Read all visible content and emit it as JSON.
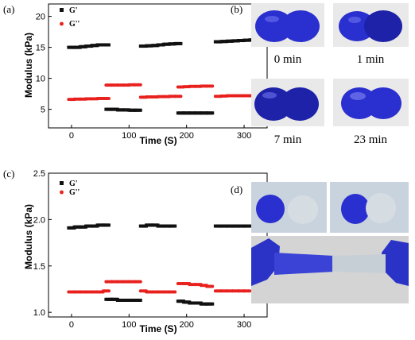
{
  "panel_labels": {
    "a": "(a)",
    "b": "(b)",
    "c": "(c)",
    "d": "(d)"
  },
  "photo_labels": {
    "b": [
      "0 min",
      "1 min",
      "7 min",
      "23 min"
    ]
  },
  "colors": {
    "g_prime": "#111111",
    "g_double_prime": "#e8211e"
  },
  "chart_data": [
    {
      "type": "scatter",
      "xlabel": "Time (S)",
      "ylabel": "Modulus (kPa)",
      "xlim": [
        -40,
        340
      ],
      "ylim": [
        2,
        22
      ],
      "xticks": [
        0,
        100,
        200,
        300
      ],
      "yticks": [
        5,
        10,
        15,
        20
      ],
      "legend": "top-left",
      "series": [
        {
          "name": "G'",
          "points": [
            [
              0,
              15.0
            ],
            [
              10,
              15.0
            ],
            [
              20,
              15.1
            ],
            [
              30,
              15.2
            ],
            [
              40,
              15.3
            ],
            [
              50,
              15.4
            ],
            [
              60,
              15.4
            ],
            [
              65,
              5.0
            ],
            [
              75,
              5.0
            ],
            [
              85,
              4.9
            ],
            [
              95,
              4.9
            ],
            [
              105,
              4.85
            ],
            [
              115,
              4.85
            ],
            [
              125,
              15.2
            ],
            [
              135,
              15.25
            ],
            [
              145,
              15.3
            ],
            [
              155,
              15.4
            ],
            [
              165,
              15.5
            ],
            [
              175,
              15.55
            ],
            [
              185,
              15.6
            ],
            [
              190,
              4.4
            ],
            [
              200,
              4.4
            ],
            [
              210,
              4.4
            ],
            [
              220,
              4.4
            ],
            [
              230,
              4.4
            ],
            [
              240,
              4.4
            ],
            [
              255,
              15.9
            ],
            [
              265,
              15.95
            ],
            [
              275,
              16.0
            ],
            [
              285,
              16.05
            ],
            [
              295,
              16.1
            ],
            [
              305,
              16.15
            ],
            [
              315,
              16.2
            ]
          ]
        },
        {
          "name": "G''",
          "points": [
            [
              0,
              6.6
            ],
            [
              10,
              6.65
            ],
            [
              20,
              6.65
            ],
            [
              30,
              6.7
            ],
            [
              40,
              6.7
            ],
            [
              50,
              6.75
            ],
            [
              60,
              6.75
            ],
            [
              65,
              8.9
            ],
            [
              75,
              8.9
            ],
            [
              85,
              8.9
            ],
            [
              95,
              8.9
            ],
            [
              105,
              8.95
            ],
            [
              115,
              8.95
            ],
            [
              125,
              6.95
            ],
            [
              135,
              7.0
            ],
            [
              145,
              7.0
            ],
            [
              155,
              7.05
            ],
            [
              165,
              7.05
            ],
            [
              175,
              7.1
            ],
            [
              185,
              7.1
            ],
            [
              190,
              8.6
            ],
            [
              200,
              8.65
            ],
            [
              210,
              8.7
            ],
            [
              220,
              8.7
            ],
            [
              230,
              8.75
            ],
            [
              240,
              8.75
            ],
            [
              255,
              7.1
            ],
            [
              265,
              7.15
            ],
            [
              275,
              7.2
            ],
            [
              285,
              7.2
            ],
            [
              295,
              7.2
            ],
            [
              305,
              7.2
            ],
            [
              315,
              7.2
            ]
          ]
        }
      ]
    },
    {
      "type": "scatter",
      "xlabel": "Time (S)",
      "ylabel": "Modulus (kPa)",
      "xlim": [
        -40,
        340
      ],
      "ylim": [
        0.95,
        2.5
      ],
      "xticks": [
        0,
        100,
        200,
        300
      ],
      "yticks": [
        1.0,
        1.5,
        2.0,
        2.5
      ],
      "legend": "top-left",
      "series": [
        {
          "name": "G'",
          "points": [
            [
              0,
              1.91
            ],
            [
              10,
              1.92
            ],
            [
              20,
              1.92
            ],
            [
              30,
              1.93
            ],
            [
              40,
              1.93
            ],
            [
              50,
              1.94
            ],
            [
              60,
              1.94
            ],
            [
              65,
              1.14
            ],
            [
              75,
              1.14
            ],
            [
              85,
              1.13
            ],
            [
              95,
              1.13
            ],
            [
              105,
              1.13
            ],
            [
              115,
              1.13
            ],
            [
              125,
              1.93
            ],
            [
              135,
              1.94
            ],
            [
              145,
              1.94
            ],
            [
              155,
              1.93
            ],
            [
              165,
              1.93
            ],
            [
              175,
              1.93
            ],
            [
              190,
              1.12
            ],
            [
              200,
              1.11
            ],
            [
              210,
              1.1
            ],
            [
              220,
              1.1
            ],
            [
              230,
              1.09
            ],
            [
              240,
              1.09
            ],
            [
              255,
              1.93
            ],
            [
              265,
              1.93
            ],
            [
              275,
              1.93
            ],
            [
              285,
              1.93
            ],
            [
              295,
              1.93
            ],
            [
              305,
              1.93
            ]
          ]
        },
        {
          "name": "G''",
          "points": [
            [
              0,
              1.22
            ],
            [
              10,
              1.22
            ],
            [
              20,
              1.22
            ],
            [
              30,
              1.22
            ],
            [
              40,
              1.22
            ],
            [
              50,
              1.22
            ],
            [
              60,
              1.23
            ],
            [
              65,
              1.33
            ],
            [
              75,
              1.33
            ],
            [
              85,
              1.33
            ],
            [
              95,
              1.33
            ],
            [
              105,
              1.33
            ],
            [
              115,
              1.33
            ],
            [
              125,
              1.23
            ],
            [
              135,
              1.22
            ],
            [
              145,
              1.22
            ],
            [
              155,
              1.22
            ],
            [
              165,
              1.22
            ],
            [
              175,
              1.22
            ],
            [
              190,
              1.31
            ],
            [
              200,
              1.31
            ],
            [
              210,
              1.3
            ],
            [
              220,
              1.3
            ],
            [
              230,
              1.29
            ],
            [
              240,
              1.28
            ],
            [
              255,
              1.23
            ],
            [
              265,
              1.23
            ],
            [
              275,
              1.23
            ],
            [
              285,
              1.23
            ],
            [
              295,
              1.23
            ],
            [
              305,
              1.23
            ]
          ]
        }
      ]
    }
  ]
}
